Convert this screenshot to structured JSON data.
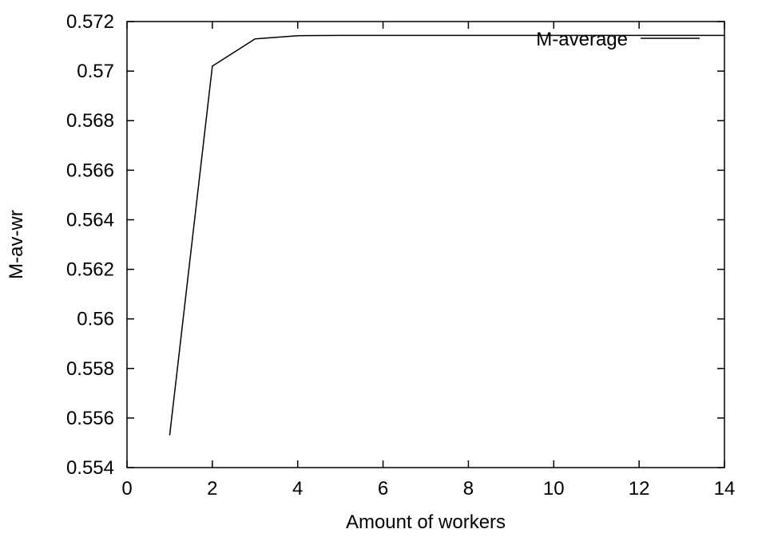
{
  "chart_data": {
    "type": "line",
    "title": "",
    "xlabel": "Amount of workers",
    "ylabel": "M-av-wr",
    "xlim": [
      0,
      14
    ],
    "ylim": [
      0.554,
      0.572
    ],
    "xticks": [
      0,
      2,
      4,
      6,
      8,
      10,
      12,
      14
    ],
    "xtick_labels": [
      "0",
      "2",
      "4",
      "6",
      "8",
      "10",
      "12",
      "14"
    ],
    "yticks": [
      0.554,
      0.556,
      0.558,
      0.56,
      0.562,
      0.564,
      0.566,
      0.568,
      0.57,
      0.572
    ],
    "ytick_labels": [
      "0.554",
      "0.556",
      "0.558",
      "0.56",
      "0.562",
      "0.564",
      "0.566",
      "0.568",
      "0.57",
      "0.572"
    ],
    "grid": false,
    "legend_position": "top-right",
    "series": [
      {
        "name": "M-average",
        "color": "#000000",
        "x": [
          1,
          2,
          3,
          4,
          5,
          6,
          7,
          8,
          9,
          10,
          11,
          12,
          13,
          14
        ],
        "y": [
          0.5553,
          0.5702,
          0.5713,
          0.57143,
          0.57144,
          0.57144,
          0.57144,
          0.57144,
          0.57144,
          0.57144,
          0.57144,
          0.57144,
          0.57144,
          0.57144
        ]
      }
    ]
  }
}
